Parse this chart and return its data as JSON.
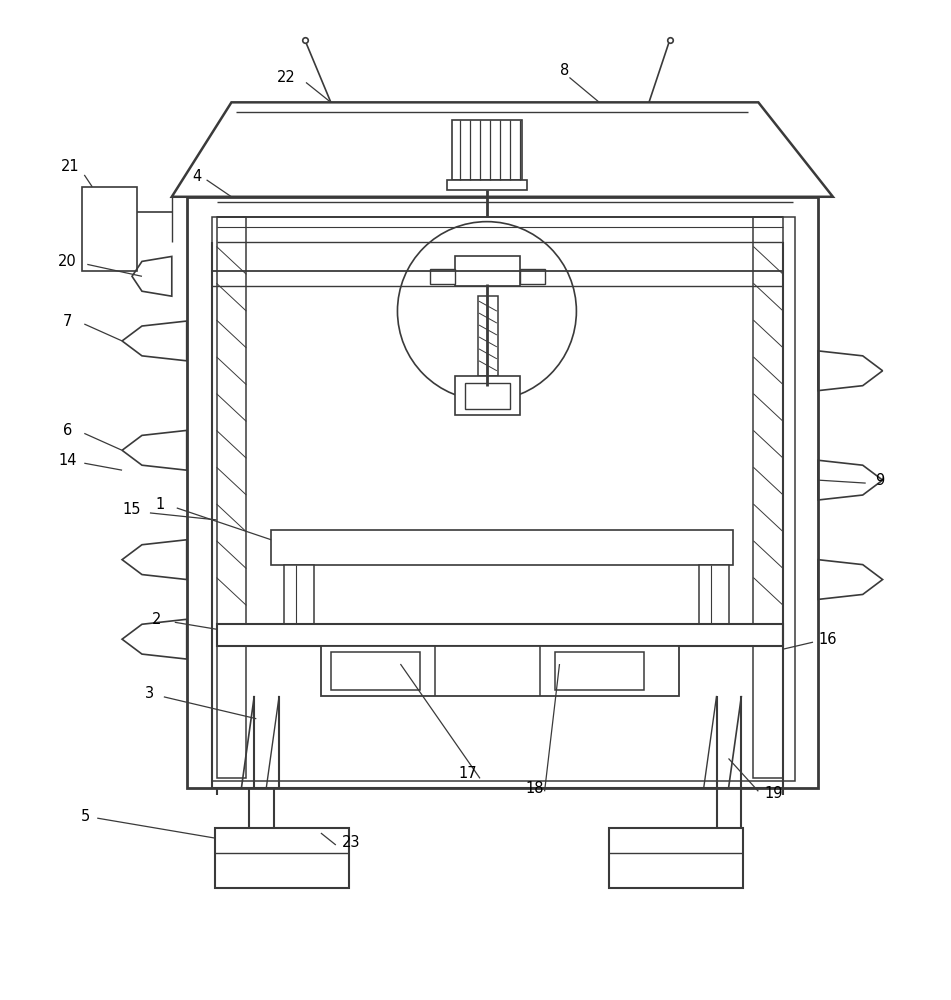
{
  "bg_color": "#ffffff",
  "line_color": "#3a3a3a",
  "lw": 1.3,
  "fig_width": 9.51,
  "fig_height": 10.0
}
